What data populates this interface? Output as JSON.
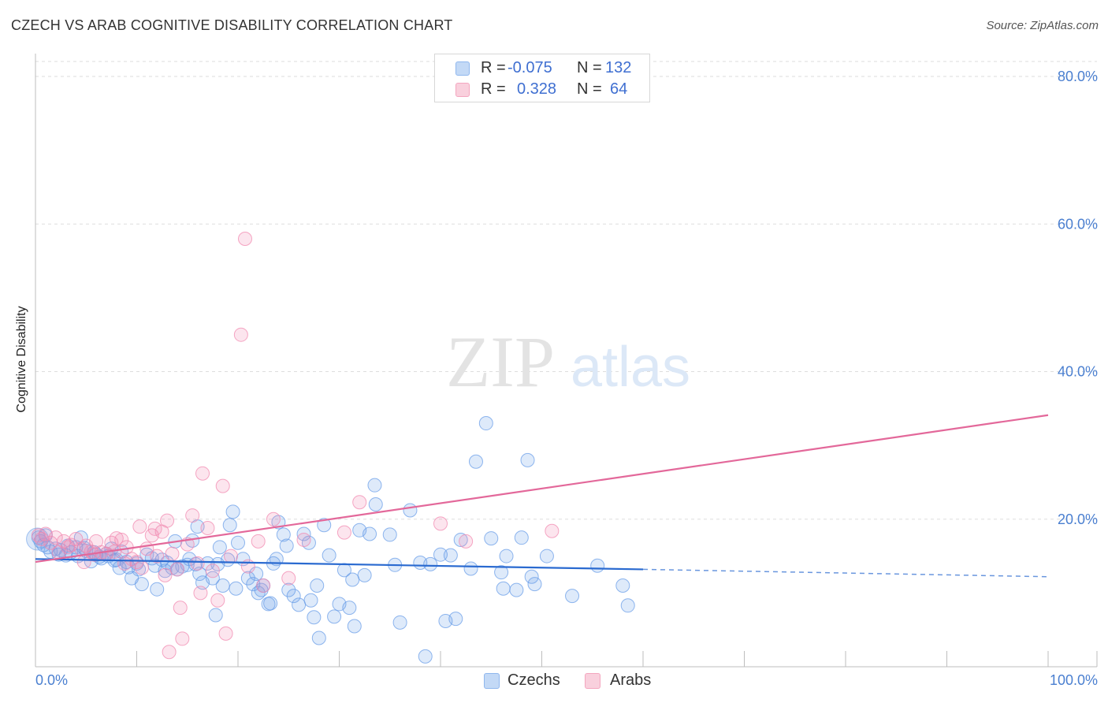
{
  "header": {
    "title": "CZECH VS ARAB COGNITIVE DISABILITY CORRELATION CHART",
    "source": "Source: ZipAtlas.com"
  },
  "watermark": {
    "zip": "ZIP",
    "atlas": "atlas"
  },
  "legend_stats": [
    {
      "r_label": "R =",
      "r_value": "-0.075",
      "n_label": "N =",
      "n_value": "132",
      "color": "#8fb7ee"
    },
    {
      "r_label": "R =",
      "r_value": "0.328",
      "n_label": "N =",
      "n_value": "64",
      "color": "#f4a6bf"
    }
  ],
  "chart_data": {
    "type": "scatter",
    "title": "CZECH VS ARAB COGNITIVE DISABILITY CORRELATION CHART",
    "xlabel": "",
    "ylabel": "Cognitive Disability",
    "xlim": [
      0,
      100
    ],
    "ylim": [
      0,
      80
    ],
    "x_tick_labels": [
      "0.0%",
      "100.0%"
    ],
    "y_ticks": [
      20,
      40,
      60,
      80
    ],
    "y_tick_labels": [
      "20.0%",
      "40.0%",
      "60.0%",
      "80.0%"
    ],
    "grid": true,
    "legend_position": "bottom-center",
    "series": [
      {
        "name": "Czechs",
        "color": "#6a9ee8",
        "trend": {
          "x0": 0,
          "y0": 14.6,
          "x1": 60,
          "y1": 13.2,
          "dash_to_x": 100,
          "dash_to_y": 12.2,
          "color": "#2a6ad0"
        },
        "points": [
          [
            0.3,
            17.5
          ],
          [
            0.5,
            17.0
          ],
          [
            0.8,
            16.5
          ],
          [
            1.0,
            17.8
          ],
          [
            1.2,
            16.2
          ],
          [
            1.5,
            15.6
          ],
          [
            2.0,
            16.0
          ],
          [
            2.3,
            15.2
          ],
          [
            2.5,
            15.8
          ],
          [
            3.0,
            15.1
          ],
          [
            3.2,
            16.4
          ],
          [
            3.5,
            15.5
          ],
          [
            4.0,
            16.2
          ],
          [
            4.2,
            15.0
          ],
          [
            4.5,
            17.5
          ],
          [
            4.8,
            16.1
          ],
          [
            5.0,
            15.7
          ],
          [
            5.5,
            14.3
          ],
          [
            5.8,
            15.5
          ],
          [
            6.0,
            15.2
          ],
          [
            6.3,
            14.9
          ],
          [
            6.5,
            14.7
          ],
          [
            7.0,
            15.3
          ],
          [
            7.2,
            15.0
          ],
          [
            7.5,
            16.0
          ],
          [
            7.8,
            14.4
          ],
          [
            8.0,
            14.5
          ],
          [
            8.3,
            13.4
          ],
          [
            8.5,
            15.6
          ],
          [
            9.0,
            14.2
          ],
          [
            9.2,
            13.5
          ],
          [
            9.5,
            12.0
          ],
          [
            10.0,
            14.0
          ],
          [
            10.2,
            13.2
          ],
          [
            10.5,
            11.2
          ],
          [
            11.0,
            15.2
          ],
          [
            11.5,
            14.7
          ],
          [
            11.8,
            13.7
          ],
          [
            12.0,
            10.5
          ],
          [
            12.5,
            14.5
          ],
          [
            12.8,
            13.0
          ],
          [
            13.0,
            14.1
          ],
          [
            13.5,
            13.4
          ],
          [
            13.8,
            17.0
          ],
          [
            14.0,
            13.2
          ],
          [
            14.5,
            13.6
          ],
          [
            15.0,
            13.8
          ],
          [
            15.2,
            14.6
          ],
          [
            15.5,
            17.1
          ],
          [
            15.8,
            13.9
          ],
          [
            16.0,
            19.0
          ],
          [
            16.2,
            12.6
          ],
          [
            16.5,
            11.4
          ],
          [
            17.0,
            14.0
          ],
          [
            17.5,
            12.0
          ],
          [
            17.8,
            7.0
          ],
          [
            18.0,
            13.9
          ],
          [
            18.2,
            16.2
          ],
          [
            18.5,
            11.0
          ],
          [
            19.0,
            14.5
          ],
          [
            19.2,
            19.2
          ],
          [
            19.5,
            21.0
          ],
          [
            19.8,
            10.6
          ],
          [
            20.0,
            16.8
          ],
          [
            20.5,
            14.6
          ],
          [
            21.0,
            12.0
          ],
          [
            21.5,
            11.2
          ],
          [
            21.8,
            12.6
          ],
          [
            22.0,
            10.0
          ],
          [
            22.3,
            10.4
          ],
          [
            22.5,
            11.0
          ],
          [
            23.0,
            8.5
          ],
          [
            23.2,
            8.6
          ],
          [
            23.5,
            14.0
          ],
          [
            23.8,
            14.6
          ],
          [
            24.0,
            19.6
          ],
          [
            24.5,
            17.9
          ],
          [
            24.8,
            16.4
          ],
          [
            25.0,
            10.4
          ],
          [
            25.5,
            9.6
          ],
          [
            26.0,
            8.4
          ],
          [
            26.5,
            18.0
          ],
          [
            27.0,
            16.8
          ],
          [
            27.2,
            9.0
          ],
          [
            27.5,
            6.7
          ],
          [
            27.8,
            11.0
          ],
          [
            28.0,
            3.9
          ],
          [
            28.5,
            19.2
          ],
          [
            29.0,
            15.1
          ],
          [
            29.5,
            6.8
          ],
          [
            30.0,
            8.5
          ],
          [
            30.5,
            13.1
          ],
          [
            31.0,
            8.0
          ],
          [
            31.3,
            11.8
          ],
          [
            31.5,
            5.5
          ],
          [
            32.0,
            18.5
          ],
          [
            32.5,
            12.4
          ],
          [
            33.0,
            18.0
          ],
          [
            33.5,
            24.6
          ],
          [
            33.6,
            22.0
          ],
          [
            35.0,
            17.9
          ],
          [
            35.5,
            13.8
          ],
          [
            36.0,
            6.0
          ],
          [
            37.0,
            21.2
          ],
          [
            38.0,
            14.1
          ],
          [
            38.5,
            1.4
          ],
          [
            39.0,
            13.9
          ],
          [
            40.0,
            15.2
          ],
          [
            40.5,
            6.2
          ],
          [
            41.0,
            15.1
          ],
          [
            41.5,
            6.5
          ],
          [
            42.0,
            17.2
          ],
          [
            43.0,
            13.3
          ],
          [
            43.5,
            27.8
          ],
          [
            44.5,
            33.0
          ],
          [
            45.0,
            17.4
          ],
          [
            46.0,
            12.8
          ],
          [
            46.2,
            10.6
          ],
          [
            46.5,
            15.0
          ],
          [
            47.5,
            10.4
          ],
          [
            48.0,
            17.5
          ],
          [
            48.6,
            28.0
          ],
          [
            49.0,
            12.2
          ],
          [
            49.3,
            11.2
          ],
          [
            50.5,
            15.0
          ],
          [
            53.0,
            9.6
          ],
          [
            55.5,
            13.7
          ],
          [
            58.0,
            11.0
          ],
          [
            58.5,
            8.3
          ]
        ]
      },
      {
        "name": "Arabs",
        "color": "#f18ab0",
        "trend": {
          "x0": 0,
          "y0": 14.2,
          "x1": 100,
          "y1": 34.1,
          "color": "#e3689a"
        },
        "points": [
          [
            0.3,
            17.8
          ],
          [
            0.6,
            17.3
          ],
          [
            1.0,
            18.0
          ],
          [
            1.5,
            16.8
          ],
          [
            2.0,
            17.5
          ],
          [
            2.3,
            15.5
          ],
          [
            2.8,
            17.0
          ],
          [
            3.2,
            16.2
          ],
          [
            3.5,
            16.5
          ],
          [
            4.0,
            17.3
          ],
          [
            4.5,
            16.0
          ],
          [
            4.8,
            14.2
          ],
          [
            5.0,
            16.4
          ],
          [
            5.5,
            15.6
          ],
          [
            5.8,
            15.2
          ],
          [
            6.0,
            17.0
          ],
          [
            6.5,
            15.5
          ],
          [
            7.0,
            15.3
          ],
          [
            7.5,
            16.8
          ],
          [
            7.8,
            15.6
          ],
          [
            8.0,
            17.4
          ],
          [
            8.5,
            17.2
          ],
          [
            8.8,
            14.0
          ],
          [
            9.0,
            16.2
          ],
          [
            9.5,
            14.6
          ],
          [
            10.0,
            14.2
          ],
          [
            10.3,
            19.0
          ],
          [
            10.5,
            13.4
          ],
          [
            11.0,
            16.0
          ],
          [
            11.5,
            17.8
          ],
          [
            11.8,
            18.7
          ],
          [
            12.0,
            15.0
          ],
          [
            12.5,
            18.3
          ],
          [
            12.8,
            12.4
          ],
          [
            13.0,
            19.8
          ],
          [
            13.2,
            2.0
          ],
          [
            13.5,
            15.3
          ],
          [
            14.0,
            13.2
          ],
          [
            14.3,
            8.0
          ],
          [
            14.5,
            3.8
          ],
          [
            15.0,
            16.6
          ],
          [
            15.5,
            20.5
          ],
          [
            16.0,
            14.0
          ],
          [
            16.3,
            10.0
          ],
          [
            16.5,
            26.2
          ],
          [
            17.0,
            18.8
          ],
          [
            17.5,
            13.0
          ],
          [
            18.0,
            9.0
          ],
          [
            18.5,
            24.5
          ],
          [
            18.8,
            4.5
          ],
          [
            19.3,
            15.0
          ],
          [
            20.3,
            45.0
          ],
          [
            20.7,
            58.0
          ],
          [
            21.0,
            13.6
          ],
          [
            22.0,
            17.0
          ],
          [
            22.5,
            11.0
          ],
          [
            23.5,
            20.0
          ],
          [
            25.0,
            12.0
          ],
          [
            26.5,
            17.2
          ],
          [
            30.5,
            18.2
          ],
          [
            32.0,
            22.3
          ],
          [
            40.0,
            19.4
          ],
          [
            42.5,
            17.0
          ],
          [
            51.0,
            18.4
          ]
        ]
      }
    ]
  },
  "bottom_legend": [
    {
      "label": "Czechs",
      "color": "#8fb7ee"
    },
    {
      "label": "Arabs",
      "color": "#f4a6bf"
    }
  ]
}
